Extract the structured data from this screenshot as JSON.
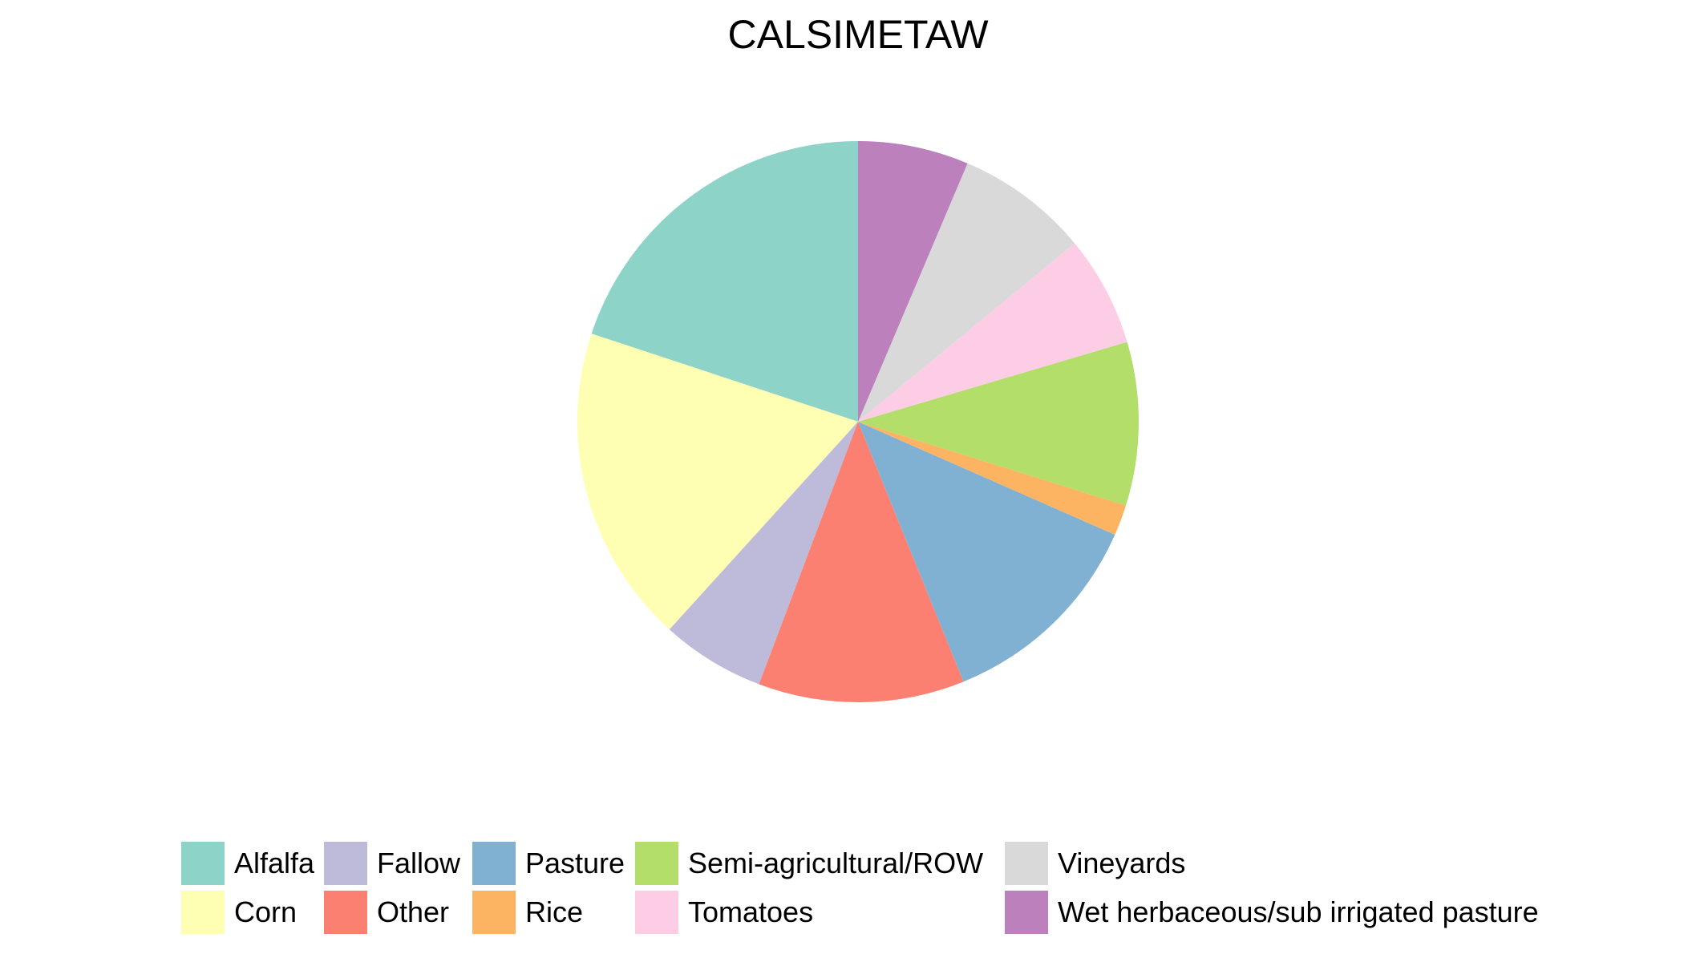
{
  "chart_data": {
    "type": "pie",
    "title": "CALSIMETAW",
    "start": "12 o'clock",
    "direction": "counterclockwise",
    "legend_position": "bottom",
    "slices": [
      {
        "label": "Alfalfa",
        "value": 20.3,
        "color": "#8DD3C7"
      },
      {
        "label": "Corn",
        "value": 18.7,
        "color": "#FFFFB3"
      },
      {
        "label": "Fallow",
        "value": 6.1,
        "color": "#BEBADA"
      },
      {
        "label": "Other",
        "value": 12.1,
        "color": "#FB8072"
      },
      {
        "label": "Pasture",
        "value": 12.5,
        "color": "#80B1D3"
      },
      {
        "label": "Rice",
        "value": 1.8,
        "color": "#FDB462"
      },
      {
        "label": "Semi-agricultural/ROW",
        "value": 9.6,
        "color": "#B3DE69"
      },
      {
        "label": "Tomatoes",
        "value": 6.5,
        "color": "#FCCDE5"
      },
      {
        "label": "Vineyards",
        "value": 7.8,
        "color": "#D9D9D9"
      },
      {
        "label": "Wet herbaceous/sub irrigated pasture",
        "value": 6.5,
        "color": "#BC80BD"
      }
    ]
  }
}
